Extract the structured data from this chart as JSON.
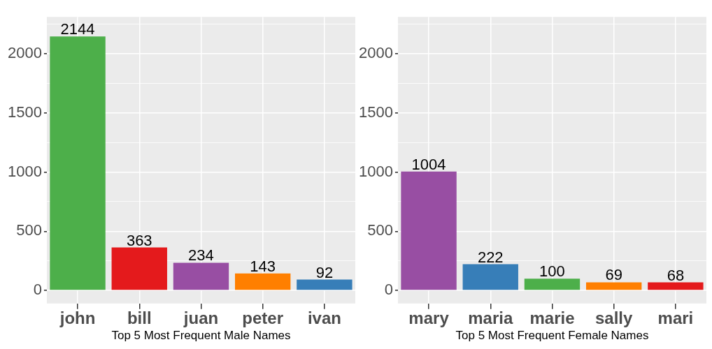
{
  "chart_data": [
    {
      "type": "bar",
      "xlabel": "Top 5 Most Frequent Male Names",
      "categories": [
        "john",
        "bill",
        "juan",
        "peter",
        "ivan"
      ],
      "values": [
        2144,
        363,
        234,
        143,
        92
      ],
      "colors": [
        "#4daf4a",
        "#e41a1c",
        "#984ea3",
        "#ff7f00",
        "#377eb8"
      ],
      "ylim": [
        -110,
        2310
      ],
      "yticks": [
        0,
        {
          "value": 250,
          "label": null
        },
        500,
        {
          "value": 750,
          "label": null
        },
        1000,
        {
          "value": 1250,
          "label": null
        },
        1500,
        {
          "value": 1750,
          "label": null
        },
        2000,
        {
          "value": 2250,
          "label": null
        }
      ],
      "grid": true,
      "data_labels": true,
      "legend": false
    },
    {
      "type": "bar",
      "xlabel": "Top 5 Most Frequent Female Names",
      "categories": [
        "mary",
        "maria",
        "marie",
        "sally",
        "mari"
      ],
      "values": [
        1004,
        222,
        100,
        69,
        68
      ],
      "colors": [
        "#984ea3",
        "#377eb8",
        "#4daf4a",
        "#ff7f00",
        "#e41a1c"
      ],
      "ylim": [
        -110,
        2310
      ],
      "yticks": [
        0,
        {
          "value": 250,
          "label": null
        },
        500,
        {
          "value": 750,
          "label": null
        },
        1000,
        {
          "value": 1250,
          "label": null
        },
        1500,
        {
          "value": 1750,
          "label": null
        },
        2000,
        {
          "value": 2250,
          "label": null
        }
      ],
      "grid": true,
      "data_labels": true,
      "legend": false
    }
  ]
}
